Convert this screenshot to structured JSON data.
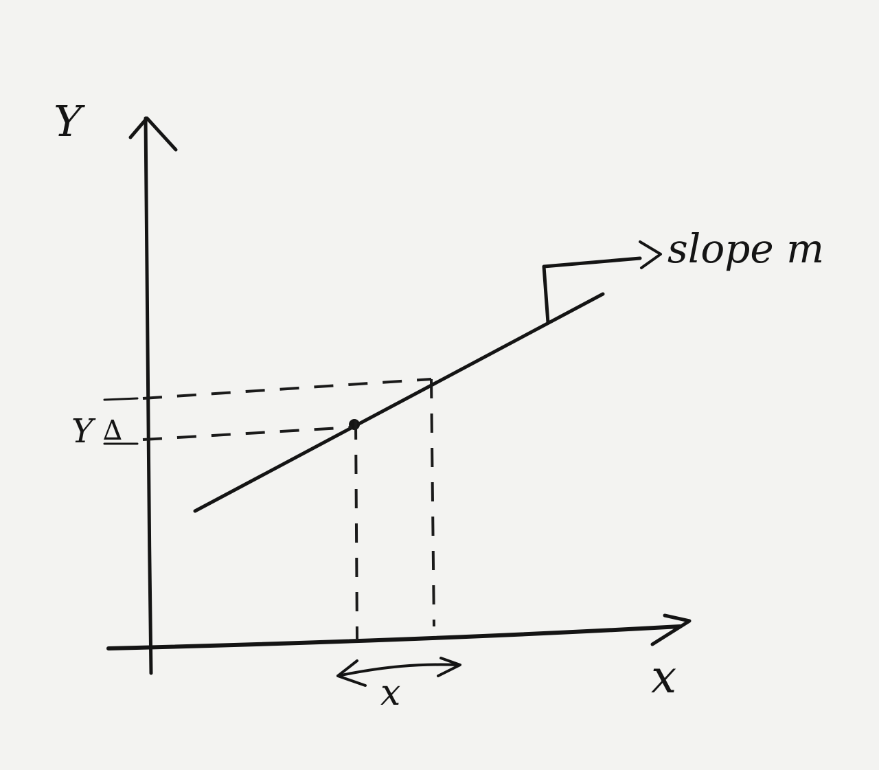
{
  "labels": {
    "y_axis": "Y",
    "x_axis": "x",
    "y_tick": "Y",
    "x_interval": "x",
    "slope": "slope m"
  },
  "colors": {
    "ink": "#141414",
    "paper": "#f3f3f1"
  }
}
